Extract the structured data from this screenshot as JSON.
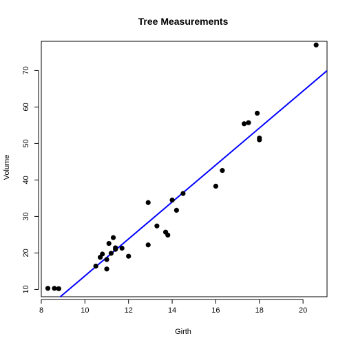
{
  "chart_data": {
    "type": "scatter",
    "title": "Tree Measurements",
    "xlabel": "Girth",
    "ylabel": "Volume",
    "xlim": [
      8,
      21.1
    ],
    "ylim": [
      8,
      78
    ],
    "x_ticks": [
      8,
      10,
      12,
      14,
      16,
      18,
      20
    ],
    "y_ticks": [
      10,
      20,
      30,
      40,
      50,
      60,
      70
    ],
    "grid": false,
    "legend": "none",
    "point_color": "#000000",
    "line_color": "#0000ff",
    "points": [
      {
        "x": 8.3,
        "y": 10.3
      },
      {
        "x": 8.6,
        "y": 10.3
      },
      {
        "x": 8.8,
        "y": 10.2
      },
      {
        "x": 10.5,
        "y": 16.4
      },
      {
        "x": 10.7,
        "y": 18.8
      },
      {
        "x": 10.8,
        "y": 19.7
      },
      {
        "x": 11.0,
        "y": 15.6
      },
      {
        "x": 11.0,
        "y": 18.2
      },
      {
        "x": 11.1,
        "y": 22.6
      },
      {
        "x": 11.2,
        "y": 19.9
      },
      {
        "x": 11.3,
        "y": 24.2
      },
      {
        "x": 11.4,
        "y": 21.0
      },
      {
        "x": 11.4,
        "y": 21.4
      },
      {
        "x": 11.7,
        "y": 21.3
      },
      {
        "x": 12.0,
        "y": 19.1
      },
      {
        "x": 12.9,
        "y": 22.2
      },
      {
        "x": 12.9,
        "y": 33.8
      },
      {
        "x": 13.3,
        "y": 27.4
      },
      {
        "x": 13.7,
        "y": 25.7
      },
      {
        "x": 13.8,
        "y": 24.9
      },
      {
        "x": 14.0,
        "y": 34.5
      },
      {
        "x": 14.2,
        "y": 31.7
      },
      {
        "x": 14.5,
        "y": 36.3
      },
      {
        "x": 16.0,
        "y": 38.3
      },
      {
        "x": 16.3,
        "y": 42.6
      },
      {
        "x": 17.3,
        "y": 55.4
      },
      {
        "x": 17.5,
        "y": 55.7
      },
      {
        "x": 17.9,
        "y": 58.3
      },
      {
        "x": 18.0,
        "y": 51.5
      },
      {
        "x": 18.0,
        "y": 51.0
      },
      {
        "x": 20.6,
        "y": 77.0
      }
    ],
    "fit_line": {
      "intercept": -36.9435,
      "slope": 5.0659
    }
  }
}
